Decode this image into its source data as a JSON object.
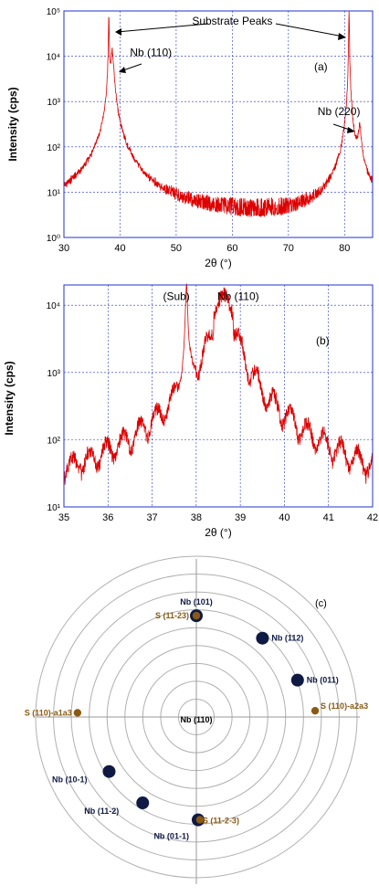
{
  "chart_data": [
    {
      "id": "a",
      "type": "line",
      "panel_label": "(a)",
      "xlabel": "2θ (°)",
      "ylabel": "Intensity (cps)",
      "xlim": [
        30,
        85
      ],
      "ylim": [
        1,
        100000
      ],
      "yscale": "log",
      "grid": true,
      "xticks": [
        "30",
        "40",
        "50",
        "60",
        "70",
        "80"
      ],
      "xtick_values": [
        30,
        40,
        50,
        60,
        70,
        80
      ],
      "yticks": [
        "10⁰",
        "10¹",
        "10²",
        "10³",
        "10⁴",
        "10⁵"
      ],
      "ytick_values": [
        1,
        10,
        100,
        1000,
        10000,
        100000
      ],
      "series_color": "#dd0000",
      "grid_color": "#2233cc",
      "peaks": [
        {
          "center": 38.0,
          "height": 100000,
          "width": 0.12
        },
        {
          "center": 38.6,
          "height": 15000,
          "width": 0.55
        },
        {
          "center": 80.8,
          "height": 100000,
          "width": 0.12
        },
        {
          "center": 82.7,
          "height": 300,
          "width": 0.6
        }
      ],
      "background_level": 3,
      "annotations": [
        {
          "text": "Substrate Peaks",
          "x": 60.0,
          "y": 50000
        },
        {
          "text": "Nb (110)",
          "x": 45.5,
          "y": 10000
        },
        {
          "text": "Nb (220)",
          "x": 79.0,
          "y": 500
        }
      ]
    },
    {
      "id": "b",
      "type": "line",
      "panel_label": "(b)",
      "xlabel": "2θ (°)",
      "ylabel": "Intensity (cps)",
      "xlim": [
        35,
        42
      ],
      "ylim": [
        10,
        20000
      ],
      "yscale": "log",
      "grid": true,
      "xticks": [
        "35",
        "36",
        "37",
        "38",
        "39",
        "40",
        "41",
        "42"
      ],
      "xtick_values": [
        35,
        36,
        37,
        38,
        39,
        40,
        41,
        42
      ],
      "yticks": [
        "10¹",
        "10²",
        "10³",
        "10⁴"
      ],
      "ytick_values": [
        10,
        100,
        1000,
        10000
      ],
      "series_color": "#dd0000",
      "grid_color": "#2233cc",
      "main_peak": {
        "center": 38.62,
        "height": 15000,
        "width": 0.22
      },
      "substrate_peak": {
        "center": 37.78,
        "height": 20000
      },
      "annotations": [
        {
          "text": "(Sub)",
          "x": 37.55,
          "y": 12000
        },
        {
          "text": "Nb (110)",
          "x": 38.95,
          "y": 12000
        }
      ]
    },
    {
      "id": "c",
      "type": "polar",
      "panel_label": "(c)",
      "center_label": "Nb (110)",
      "ring_count": 9,
      "nb_color": "#0f1a44",
      "substrate_color": "#8b5a12",
      "grid_color": "#b0b0b0",
      "nb_points": [
        {
          "label": "Nb (101)",
          "angle": 90,
          "radius": 0.63
        },
        {
          "label": "Nb (112)",
          "angle": 50,
          "radius": 0.64
        },
        {
          "label": "Nb (011)",
          "angle": 20,
          "radius": 0.67
        },
        {
          "label": "Nb (10-1)",
          "angle": 212,
          "radius": 0.64
        },
        {
          "label": "Nb (11-2)",
          "angle": 238,
          "radius": 0.63
        },
        {
          "label": "Nb (01-1)",
          "angle": 271,
          "radius": 0.64
        }
      ],
      "substrate_points": [
        {
          "label": "S (11-23)",
          "angle": 90,
          "radius": 0.63
        },
        {
          "label": "S (110)-a2a3",
          "angle": 3,
          "radius": 0.74
        },
        {
          "label": "S (110)-a1a3",
          "angle": 178,
          "radius": 0.74
        },
        {
          "label": "S (11-2-3)",
          "angle": 272,
          "radius": 0.64
        }
      ]
    }
  ]
}
